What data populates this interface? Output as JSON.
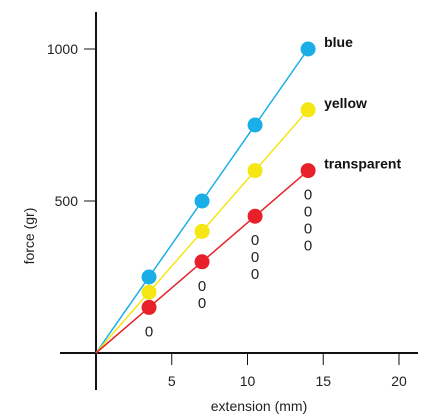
{
  "chart_data": {
    "type": "line",
    "xlabel": "extension (mm)",
    "ylabel": "force (gr)",
    "xlim": [
      0,
      20
    ],
    "ylim": [
      0,
      1000
    ],
    "x_ticks": [
      "5",
      "10",
      "15",
      "20"
    ],
    "y_ticks": [
      "500",
      "1000"
    ],
    "grid": false,
    "series": [
      {
        "name": "blue",
        "color": "#1aaee6",
        "x": [
          0,
          3.5,
          7,
          10.5,
          14
        ],
        "y": [
          0,
          250,
          500,
          750,
          1000
        ]
      },
      {
        "name": "yellow",
        "color": "#f5e614",
        "x": [
          0,
          3.5,
          7,
          10.5,
          14
        ],
        "y": [
          0,
          200,
          400,
          600,
          800
        ]
      },
      {
        "name": "transparent",
        "color": "#e8202a",
        "x": [
          0,
          3.5,
          7,
          10.5,
          14
        ],
        "y": [
          0,
          150,
          300,
          450,
          600
        ]
      }
    ],
    "annotations": [
      {
        "text": "0",
        "x": 3.5
      },
      {
        "text": "0",
        "x": 7
      },
      {
        "text": "0",
        "x": 7
      },
      {
        "text": "0",
        "x": 10.5
      },
      {
        "text": "0",
        "x": 10.5
      },
      {
        "text": "0",
        "x": 10.5
      },
      {
        "text": "0",
        "x": 14
      },
      {
        "text": "0",
        "x": 14
      },
      {
        "text": "0",
        "x": 14
      },
      {
        "text": "0",
        "x": 14
      }
    ]
  }
}
